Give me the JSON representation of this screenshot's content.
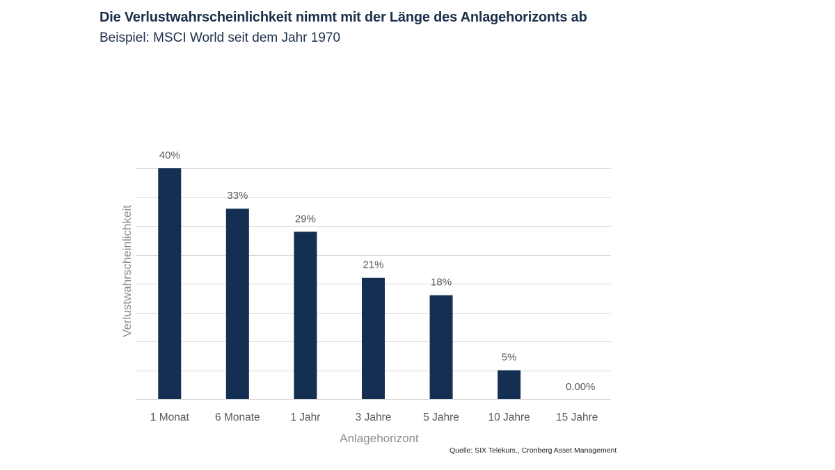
{
  "header": {
    "title": "Die Verlustwahrscheinlichkeit nimmt mit der Länge des Anlagehorizonts ab",
    "subtitle": "Beispiel: MSCI World seit dem Jahr 1970"
  },
  "source": "Quelle: SIX Telekurs., Cronberg Asset Management",
  "colors": {
    "bar": "#152f52",
    "grid": "#d9d9d9",
    "label": "#595959",
    "axis_title": "#8c8c8c"
  },
  "chart_data": {
    "type": "bar",
    "title": "Die Verlustwahrscheinlichkeit nimmt mit der Länge des Anlagehorizonts ab",
    "subtitle": "Beispiel: MSCI World seit dem Jahr 1970",
    "xlabel": "Anlagehorizont",
    "ylabel": "Verlustwahrscheinlichkeit",
    "categories": [
      "1 Monat",
      "6 Monate",
      "1 Jahr",
      "3 Jahre",
      "5 Jahre",
      "10 Jahre",
      "15 Jahre"
    ],
    "values": [
      40,
      33,
      29,
      21,
      18,
      5,
      0
    ],
    "data_labels": [
      "40%",
      "33%",
      "29%",
      "21%",
      "18%",
      "5%",
      "0.00%"
    ],
    "ylim": [
      0,
      40
    ],
    "grid_step": 5,
    "grid": true,
    "y_tick_labels_visible": false,
    "legend": "none"
  }
}
